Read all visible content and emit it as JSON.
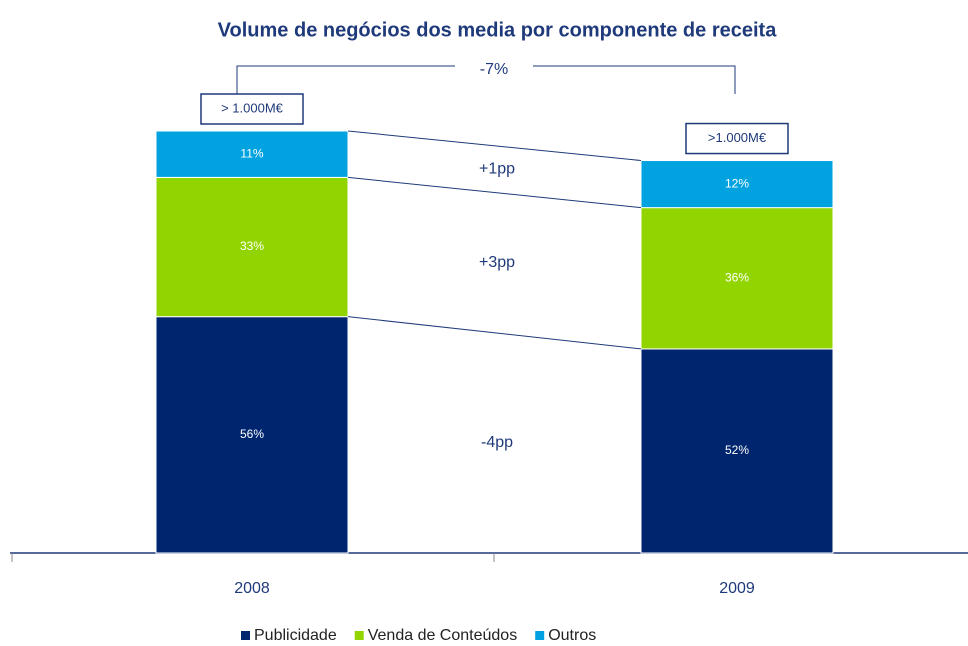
{
  "chart_data": {
    "type": "stacked_bar",
    "title": "Volume de negócios dos media por componente de receita",
    "categories": [
      "2008",
      "2009"
    ],
    "series": [
      {
        "name": "Publicidade",
        "color": "#00256f",
        "values": [
          56,
          52
        ],
        "value_labels": [
          "56%",
          "52%"
        ],
        "delta": "-4pp"
      },
      {
        "name": "Venda de Conteúdos",
        "color": "#92d400",
        "values": [
          33,
          36
        ],
        "value_labels": [
          "33%",
          "36%"
        ],
        "delta": "+3pp"
      },
      {
        "name": "Outros",
        "color": "#00a3e0",
        "values": [
          11,
          12
        ],
        "value_labels": [
          "11%",
          "12%"
        ],
        "delta": "+1pp"
      }
    ],
    "totals": [
      "> 1.000M€",
      ">1.000M€"
    ],
    "change": {
      "value": -7,
      "label": "-7%"
    }
  }
}
